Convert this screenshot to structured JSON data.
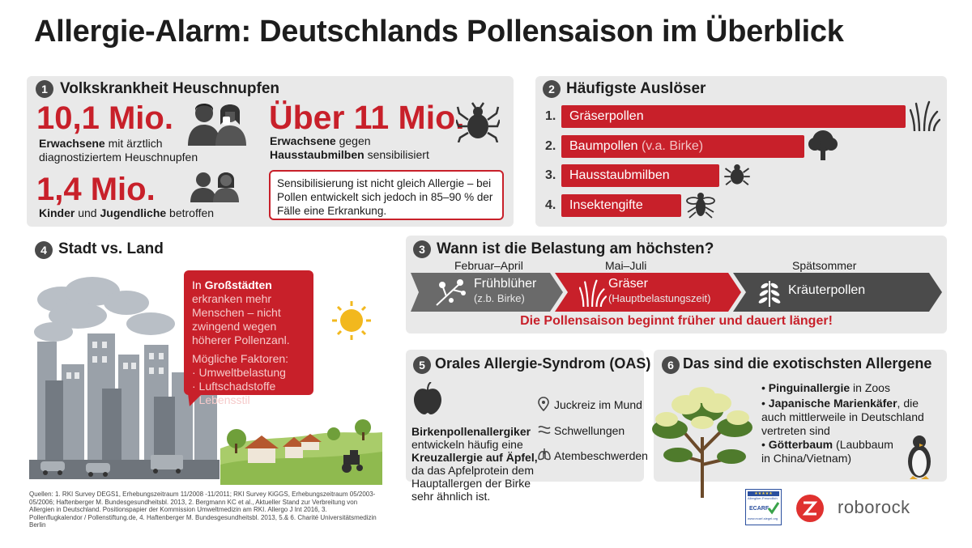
{
  "title": "Allergie-Alarm: Deutschlands Pollensaison im Überblick",
  "s1": {
    "num": "1",
    "title": "Volkskrankheit Heuschnupfen",
    "stat1": {
      "value": "10,1 Mio.",
      "bold": "Erwachsene",
      "rest": " mit ärztlich",
      "line2": "diagnostiziertem Heuschnupfen"
    },
    "stat2": {
      "value": "Über 11 Mio.",
      "bold1": "Erwachsene",
      "rest1": " gegen",
      "bold2": "Hausstaubmilben",
      "rest2": " sensibilisiert"
    },
    "stat3": {
      "value": "1,4 Mio.",
      "bold1": "Kinder",
      "mid": " und ",
      "bold2": "Jugendliche",
      "rest": " betroffen"
    },
    "note": "Sensibilisierung ist nicht gleich Allergie – bei Pollen entwickelt sich jedoch in 85–90 % der Fälle eine Erkrankung."
  },
  "s2": {
    "num": "2",
    "title": "Häufigste Auslöser",
    "items": [
      {
        "rank": "1.",
        "label": "Gräserpollen",
        "sub": "",
        "level": 1.0
      },
      {
        "rank": "2.",
        "label": "Baumpollen",
        "sub": " (v.a. Birke)",
        "level": 0.69
      },
      {
        "rank": "3.",
        "label": "Hausstaubmilben",
        "sub": "",
        "level": 0.45
      },
      {
        "rank": "4.",
        "label": "Insektengifte",
        "sub": "",
        "level": 0.34
      }
    ]
  },
  "s3": {
    "num": "3",
    "title": "Wann ist die Belastung am höchsten?",
    "months": [
      "Februar–April",
      "Mai–Juli",
      "Spätsommer"
    ],
    "phases": [
      {
        "label": "Frühblüher",
        "sub": "(z.b. Birke)"
      },
      {
        "label": "Gräser",
        "sub": "(Hauptbelastungszeit)"
      },
      {
        "label": "Kräuterpollen",
        "sub": ""
      }
    ],
    "footer": "Die Pollensaison beginnt früher und dauert länger!"
  },
  "s4": {
    "num": "4",
    "title": "Stadt vs. Land",
    "bubble": {
      "intro": "In ",
      "bold": "Großstädten",
      "text": "erkranken mehr Menschen – nicht zwingend wegen höherer Pollenzanl.",
      "factors_title": "Mögliche Faktoren:",
      "factors": [
        "· Umweltbelastung",
        "· Luftschadstoffe",
        "· Lebensstil"
      ]
    }
  },
  "s5": {
    "num": "5",
    "title": "Orales Allergie-Syndrom (OAS)",
    "b1": "Birkenpollenallergiker",
    "t1": "entwickeln häufig eine",
    "b2": "Kreuzallergie auf Äpfel,",
    "t2": "da das Apfelprotein dem Hauptallergen der Birke sehr ähnlich ist.",
    "symptoms": [
      "Juckreiz im Mund",
      "Schwellungen",
      "Atembeschwerden"
    ]
  },
  "s6": {
    "num": "6",
    "title": "Das sind die exotischsten Allergene",
    "items": [
      {
        "bold": "Pinguinallergie",
        "rest": " in Zoos"
      },
      {
        "bold": "Japanische Marienkäfer",
        "rest": ", die auch mittlerweile in Deutschland vertreten sind"
      },
      {
        "bold": "Götterbaum",
        "rest": " (Laubbaum in China/Vietnam)"
      }
    ]
  },
  "sources": "Quellen: 1. RKI Survey DEGS1, Erhebungszeitraum 11/2008 -11/2011; RKI Survey KiGGS, Erhebungszeitraum 05/2003-05/2006; Haftenberger M. Bundesgesundheitsbl. 2013, 2. Bergmann KC et al., Aktueller Stand zur Verbreitung von Allergien in Deutschland. Positionspapier der Kommission Umweltmedizin am RKI. Allergo J Int 2016, 3. Pollenflugkalendor / Pollenstiftung.de, 4. Haftenberger M. Bundesgesundheitsbl. 2013, 5.& 6. Charité Universitätsmedizin Berlin",
  "seal": {
    "line1": "Allergiker-Freundlich",
    "line2": "ECARF",
    "line3": "www.ecarf-siegel.org"
  },
  "brand": "roborock",
  "colors": {
    "accent": "#c8202a",
    "panel": "#e9e9e9",
    "dark": "#4a4a4a"
  }
}
